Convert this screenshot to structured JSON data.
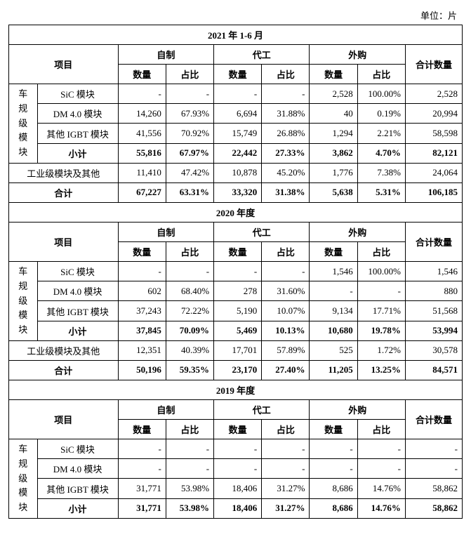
{
  "unit_label": "单位：片",
  "headers": {
    "project": "项目",
    "self": "自制",
    "oem": "代工",
    "buy": "外购",
    "total": "合计数量",
    "qty": "数量",
    "pct": "占比"
  },
  "sections": [
    {
      "title": "2021 年 1-6 月",
      "group_label": "车规级模块",
      "rows": [
        {
          "label": "SiC 模块",
          "self_q": "-",
          "self_p": "-",
          "oem_q": "-",
          "oem_p": "-",
          "buy_q": "2,528",
          "buy_p": "100.00%",
          "tot": "2,528"
        },
        {
          "label": "DM 4.0 模块",
          "self_q": "14,260",
          "self_p": "67.93%",
          "oem_q": "6,694",
          "oem_p": "31.88%",
          "buy_q": "40",
          "buy_p": "0.19%",
          "tot": "20,994"
        },
        {
          "label": "其他 IGBT 模块",
          "self_q": "41,556",
          "self_p": "70.92%",
          "oem_q": "15,749",
          "oem_p": "26.88%",
          "buy_q": "1,294",
          "buy_p": "2.21%",
          "tot": "58,598"
        }
      ],
      "subtotal": {
        "label": "小计",
        "self_q": "55,816",
        "self_p": "67.97%",
        "oem_q": "22,442",
        "oem_p": "27.33%",
        "buy_q": "3,862",
        "buy_p": "4.70%",
        "tot": "82,121"
      },
      "industrial": {
        "label": "工业级模块及其他",
        "self_q": "11,410",
        "self_p": "47.42%",
        "oem_q": "10,878",
        "oem_p": "45.20%",
        "buy_q": "1,776",
        "buy_p": "7.38%",
        "tot": "24,064"
      },
      "total": {
        "label": "合计",
        "self_q": "67,227",
        "self_p": "63.31%",
        "oem_q": "33,320",
        "oem_p": "31.38%",
        "buy_q": "5,638",
        "buy_p": "5.31%",
        "tot": "106,185"
      }
    },
    {
      "title": "2020 年度",
      "group_label": "车规级模块",
      "rows": [
        {
          "label": "SiC 模块",
          "self_q": "-",
          "self_p": "-",
          "oem_q": "-",
          "oem_p": "-",
          "buy_q": "1,546",
          "buy_p": "100.00%",
          "tot": "1,546"
        },
        {
          "label": "DM 4.0 模块",
          "self_q": "602",
          "self_p": "68.40%",
          "oem_q": "278",
          "oem_p": "31.60%",
          "buy_q": "-",
          "buy_p": "-",
          "tot": "880"
        },
        {
          "label": "其他 IGBT 模块",
          "self_q": "37,243",
          "self_p": "72.22%",
          "oem_q": "5,190",
          "oem_p": "10.07%",
          "buy_q": "9,134",
          "buy_p": "17.71%",
          "tot": "51,568"
        }
      ],
      "subtotal": {
        "label": "小计",
        "self_q": "37,845",
        "self_p": "70.09%",
        "oem_q": "5,469",
        "oem_p": "10.13%",
        "buy_q": "10,680",
        "buy_p": "19.78%",
        "tot": "53,994"
      },
      "industrial": {
        "label": "工业级模块及其他",
        "self_q": "12,351",
        "self_p": "40.39%",
        "oem_q": "17,701",
        "oem_p": "57.89%",
        "buy_q": "525",
        "buy_p": "1.72%",
        "tot": "30,578"
      },
      "total": {
        "label": "合计",
        "self_q": "50,196",
        "self_p": "59.35%",
        "oem_q": "23,170",
        "oem_p": "27.40%",
        "buy_q": "11,205",
        "buy_p": "13.25%",
        "tot": "84,571"
      }
    },
    {
      "title": "2019 年度",
      "group_label": "车规级模块",
      "rows": [
        {
          "label": "SiC 模块",
          "self_q": "-",
          "self_p": "-",
          "oem_q": "-",
          "oem_p": "-",
          "buy_q": "-",
          "buy_p": "-",
          "tot": "-"
        },
        {
          "label": "DM 4.0 模块",
          "self_q": "-",
          "self_p": "-",
          "oem_q": "-",
          "oem_p": "-",
          "buy_q": "-",
          "buy_p": "-",
          "tot": "-"
        },
        {
          "label": "其他 IGBT 模块",
          "self_q": "31,771",
          "self_p": "53.98%",
          "oem_q": "18,406",
          "oem_p": "31.27%",
          "buy_q": "8,686",
          "buy_p": "14.76%",
          "tot": "58,862"
        }
      ],
      "subtotal": {
        "label": "小计",
        "self_q": "31,771",
        "self_p": "53.98%",
        "oem_q": "18,406",
        "oem_p": "31.27%",
        "buy_q": "8,686",
        "buy_p": "14.76%",
        "tot": "58,862"
      },
      "industrial": null,
      "total": null
    }
  ]
}
